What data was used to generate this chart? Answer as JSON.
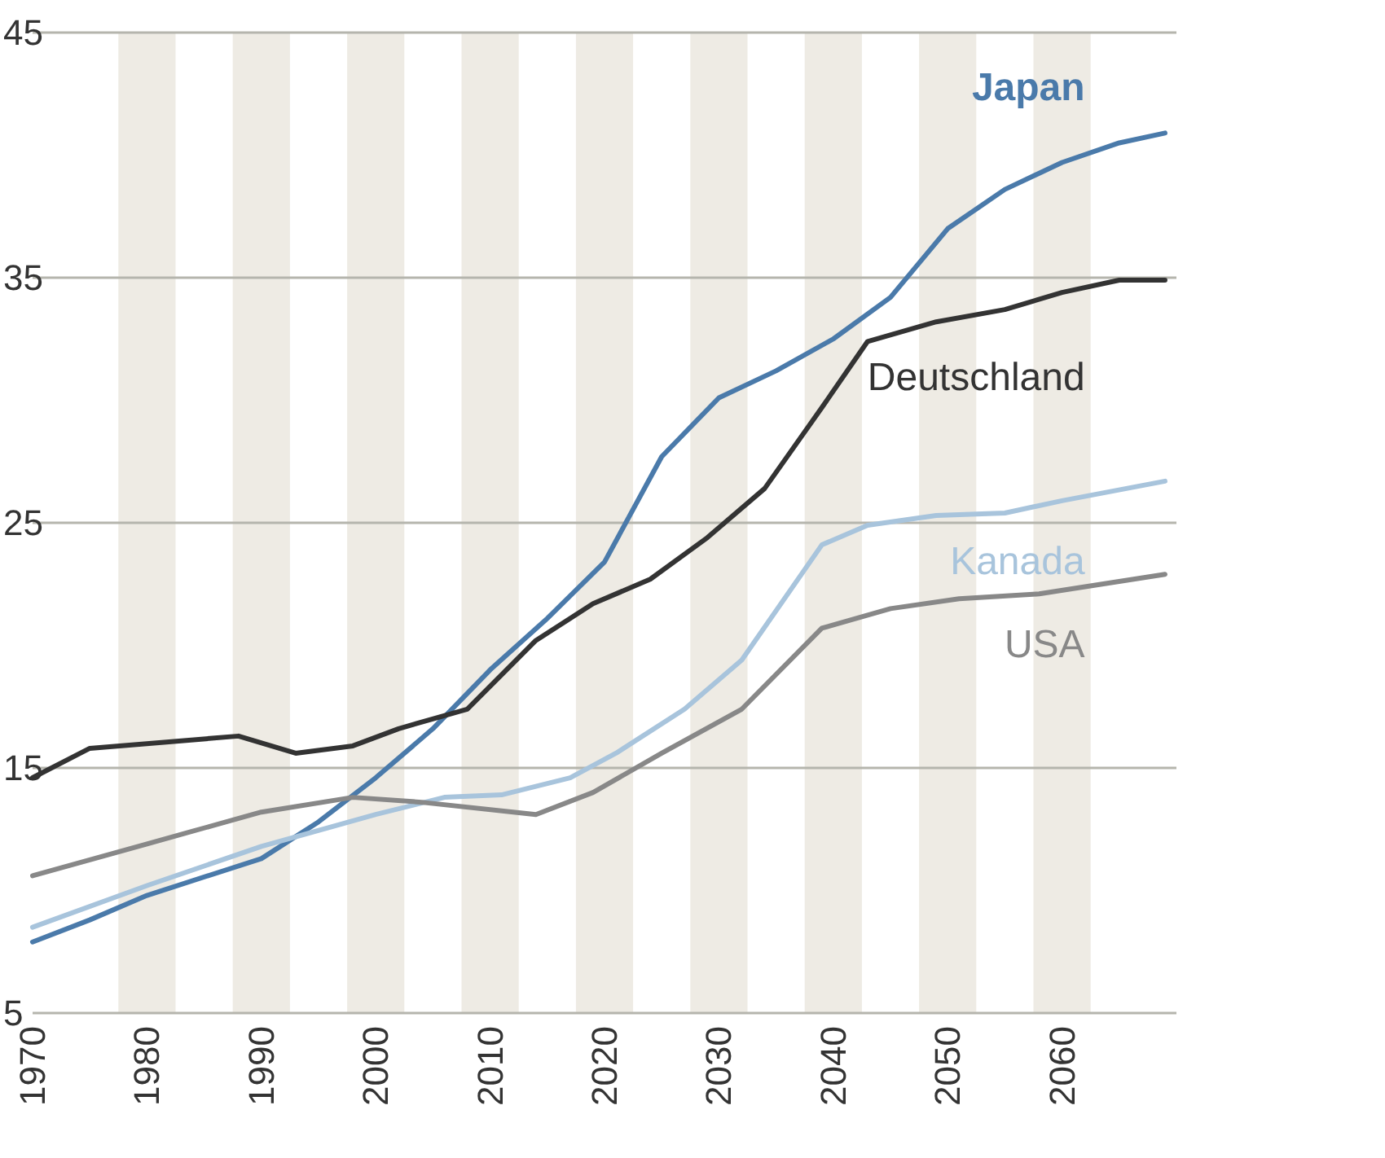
{
  "chart_data": {
    "type": "line",
    "grid": "y",
    "line_style": "solid",
    "xlim": [
      1970,
      2070
    ],
    "ylim": [
      5,
      45
    ],
    "xticks": [
      1970,
      1980,
      1990,
      2000,
      2010,
      2020,
      2030,
      2040,
      2050,
      2060
    ],
    "yticks": [
      5,
      15,
      25,
      35,
      45
    ],
    "bands": [
      {
        "axis": "x",
        "from": 1977.5,
        "to": 1982.5,
        "color": "#eeebe4"
      },
      {
        "axis": "x",
        "from": 1987.5,
        "to": 1992.5,
        "color": "#eeebe4"
      },
      {
        "axis": "x",
        "from": 1997.5,
        "to": 2002.5,
        "color": "#eeebe4"
      },
      {
        "axis": "x",
        "from": 2007.5,
        "to": 2012.5,
        "color": "#eeebe4"
      },
      {
        "axis": "x",
        "from": 2017.5,
        "to": 2022.5,
        "color": "#eeebe4"
      },
      {
        "axis": "x",
        "from": 2027.5,
        "to": 2032.5,
        "color": "#eeebe4"
      },
      {
        "axis": "x",
        "from": 2037.5,
        "to": 2042.5,
        "color": "#eeebe4"
      },
      {
        "axis": "x",
        "from": 2047.5,
        "to": 2052.5,
        "color": "#eeebe4"
      },
      {
        "axis": "x",
        "from": 2057.5,
        "to": 2062.5,
        "color": "#eeebe4"
      }
    ],
    "series": [
      {
        "name": "Japan",
        "color": "#4a7aaa",
        "x": [
          1970,
          1975,
          1980,
          1990,
          1995,
          2000,
          2005,
          2010,
          2015,
          2020,
          2025,
          2030,
          2035,
          2040,
          2045,
          2050,
          2055,
          2060,
          2065,
          2069
        ],
        "values": [
          7.9,
          8.8,
          9.8,
          11.3,
          12.8,
          14.6,
          16.6,
          19.0,
          21.1,
          23.4,
          27.7,
          30.1,
          31.2,
          32.5,
          34.2,
          37.0,
          38.6,
          39.7,
          40.5,
          40.9
        ]
      },
      {
        "name": "Deutschland",
        "color": "#333333",
        "x": [
          1970,
          1975,
          1988,
          1993,
          1998,
          2002,
          2008,
          2014,
          2019,
          2024,
          2029,
          2034,
          2039,
          2043,
          2049,
          2055,
          2060,
          2065,
          2069
        ],
        "values": [
          14.6,
          15.8,
          16.3,
          15.6,
          15.9,
          16.6,
          17.4,
          20.2,
          21.7,
          22.7,
          24.4,
          26.4,
          29.7,
          32.4,
          33.2,
          33.7,
          34.4,
          34.9,
          34.9
        ]
      },
      {
        "name": "Kanada",
        "color": "#a8c4dc",
        "x": [
          1970,
          1980,
          1990,
          2000,
          2006,
          2011,
          2017,
          2021,
          2027,
          2032,
          2039,
          2043,
          2049,
          2055,
          2060,
          2069
        ],
        "values": [
          8.5,
          10.2,
          11.8,
          13.1,
          13.8,
          13.9,
          14.6,
          15.6,
          17.4,
          19.4,
          24.1,
          24.9,
          25.3,
          25.4,
          25.9,
          26.7
        ]
      },
      {
        "name": "USA",
        "color": "#888888",
        "x": [
          1970,
          1980,
          1990,
          1998,
          2004,
          2014,
          2019,
          2025,
          2032,
          2039,
          2045,
          2051,
          2058,
          2069
        ],
        "values": [
          10.6,
          11.9,
          13.2,
          13.8,
          13.6,
          13.1,
          14.0,
          15.6,
          17.4,
          20.7,
          21.5,
          21.9,
          22.1,
          22.9
        ]
      }
    ]
  }
}
